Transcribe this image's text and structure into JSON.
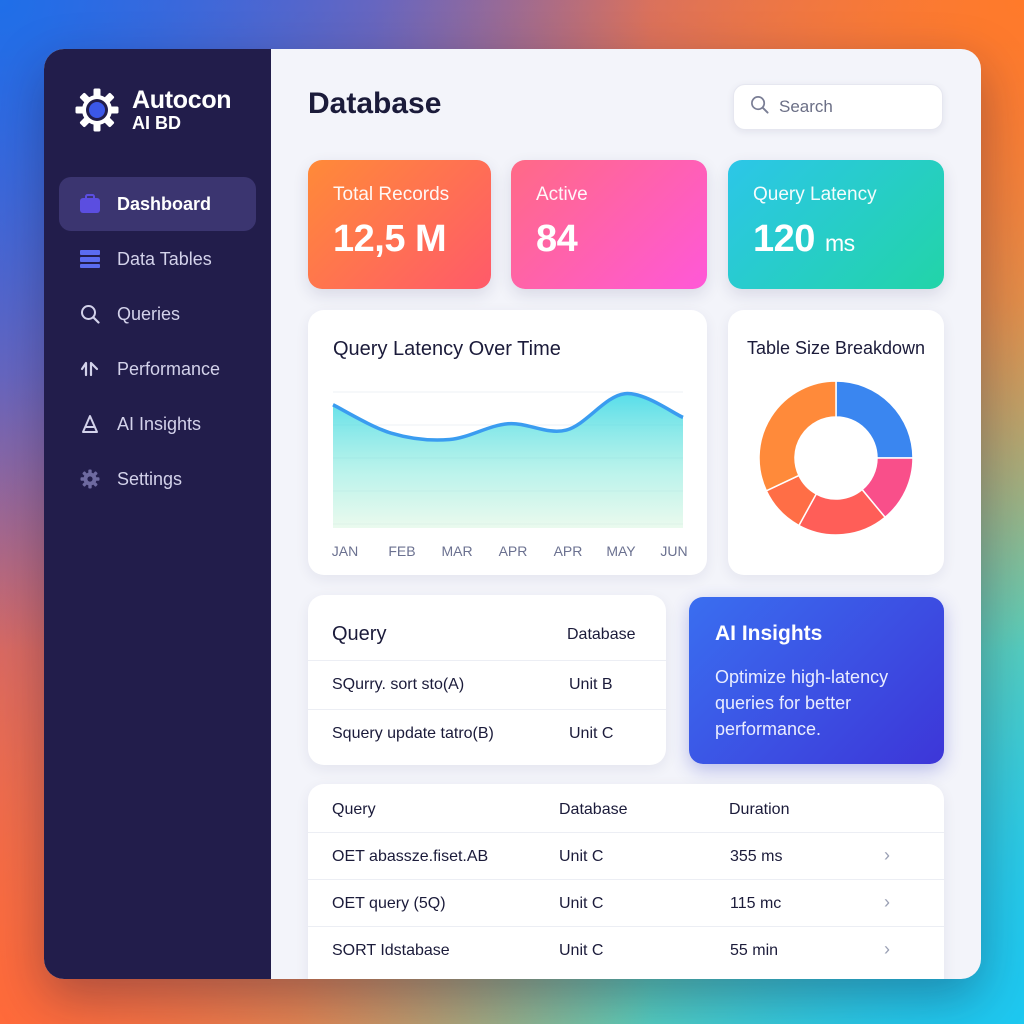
{
  "brand": {
    "name": "Autocon",
    "sub": "AI BD"
  },
  "sidebar": {
    "items": [
      {
        "label": "Dashboard",
        "icon": "briefcase-icon",
        "active": true
      },
      {
        "label": "Data Tables",
        "icon": "table-icon",
        "active": false
      },
      {
        "label": "Queries",
        "icon": "search-icon",
        "active": false
      },
      {
        "label": "Performance",
        "icon": "performance-icon",
        "active": false
      },
      {
        "label": "AI Insights",
        "icon": "ai-insights-icon",
        "active": false
      },
      {
        "label": "Settings",
        "icon": "gear-icon",
        "active": false
      }
    ]
  },
  "header": {
    "title": "Database",
    "search_placeholder": "Search"
  },
  "stats": [
    {
      "label": "Total Records",
      "value": "12,5 M",
      "unit": ""
    },
    {
      "label": "Active",
      "value": "84",
      "unit": ""
    },
    {
      "label": "Query Latency",
      "value": "120",
      "unit": "ms"
    }
  ],
  "latency_chart": {
    "title": "Query Latency Over Time",
    "chart_data": {
      "type": "area",
      "categories": [
        "JAN",
        "FEB",
        "MAR",
        "APR",
        "APR",
        "MAY",
        "JUN"
      ],
      "values": [
        78,
        60,
        56,
        66,
        62,
        85,
        70
      ],
      "ylim": [
        0,
        100
      ],
      "grid": true
    }
  },
  "breakdown_chart": {
    "title": "Table Size Breakdown",
    "chart_data": {
      "type": "pie",
      "donut": true,
      "values": [
        25,
        14,
        19,
        10,
        32
      ],
      "colors": [
        "#3a86f0",
        "#f94f8a",
        "#ff5e58",
        "#ff6e46",
        "#ff8a3a"
      ]
    }
  },
  "query_card": {
    "headers": [
      "Query",
      "Database"
    ],
    "rows": [
      [
        "SQurry. sort sto(A)",
        "Unit B"
      ],
      [
        "Squery update tatro(B)",
        "Unit C"
      ]
    ]
  },
  "ai_insights": {
    "title": "AI Insights",
    "text": "Optimize high-latency queries for better performance."
  },
  "query_table": {
    "headers": [
      "Query",
      "Database",
      "Duration"
    ],
    "rows": [
      [
        "OET abassze.fiset.AB",
        "Unit C",
        "355 ms"
      ],
      [
        "OET query (5Q)",
        "Unit C",
        "115 mc"
      ],
      [
        "SORT Idstabase",
        "Unit C",
        "55 min"
      ]
    ]
  }
}
